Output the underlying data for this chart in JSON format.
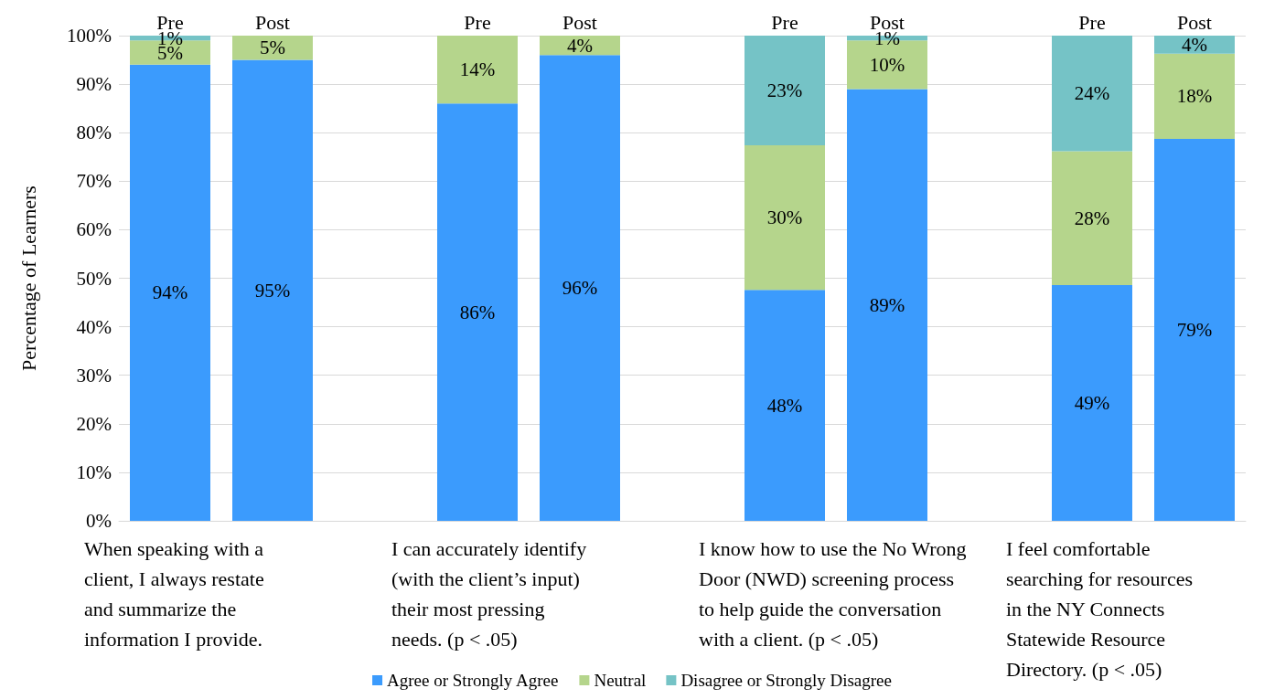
{
  "chart_data": {
    "type": "bar",
    "stacked": true,
    "ylabel": "Percentage of Learners",
    "categories": [
      "Pre",
      "Post",
      null,
      "Pre",
      "Post",
      null,
      "Pre",
      "Post",
      null,
      "Pre",
      "Post"
    ],
    "series": [
      {
        "name": "Agree or Strongly Agree",
        "color": "#3b9bfd",
        "values": [
          94,
          95,
          null,
          86,
          96,
          null,
          47.6,
          89,
          null,
          48.6,
          78.7
        ],
        "value_labels": [
          "94%",
          "95%",
          null,
          "86%",
          "96%",
          null,
          "48%",
          "89%",
          null,
          "49%",
          "79%"
        ]
      },
      {
        "name": "Neutral",
        "color": "#b5d58c",
        "values": [
          5,
          5,
          null,
          14,
          4,
          null,
          29.8,
          10,
          null,
          27.6,
          17.6
        ],
        "value_labels": [
          "5%",
          "5%",
          null,
          "14%",
          "4%",
          null,
          "30%",
          "10%",
          null,
          "28%",
          "18%"
        ]
      },
      {
        "name": "Disagree or Strongly Disagree",
        "color": "#75c3c6",
        "values": [
          1,
          null,
          null,
          null,
          null,
          null,
          22.6,
          1,
          null,
          23.8,
          3.7
        ],
        "value_labels": [
          "1%",
          null,
          null,
          null,
          null,
          null,
          "23%",
          "1%",
          null,
          "24%",
          "4%"
        ]
      }
    ],
    "ylim": [
      0,
      100
    ],
    "yticks": [
      {
        "value": 0,
        "label": "0%"
      },
      {
        "value": 10,
        "label": "10%"
      },
      {
        "value": 20,
        "label": "20%"
      },
      {
        "value": 30,
        "label": "30%"
      },
      {
        "value": 40,
        "label": "40%"
      },
      {
        "value": 50,
        "label": "50%"
      },
      {
        "value": 60,
        "label": "60%"
      },
      {
        "value": 70,
        "label": "70%"
      },
      {
        "value": 80,
        "label": "80%"
      },
      {
        "value": 90,
        "label": "90%"
      },
      {
        "value": 100,
        "label": "100%"
      }
    ],
    "grid": "y",
    "legend": "bottom",
    "annotations": [
      "When speaking with a\nclient, I always restate\nand summarize the\ninformation I provide.",
      "I can accurately identify\n(with the client’s input)\ntheir most pressing\nneeds. (p < .05)",
      "I know how to use the No Wrong\nDoor (NWD) screening process\nto help guide the conversation\nwith a client. (p < .05)",
      "I feel comfortable\nsearching for resources\nin the NY Connects\nStatewide Resource\nDirectory. (p < .05)"
    ]
  }
}
